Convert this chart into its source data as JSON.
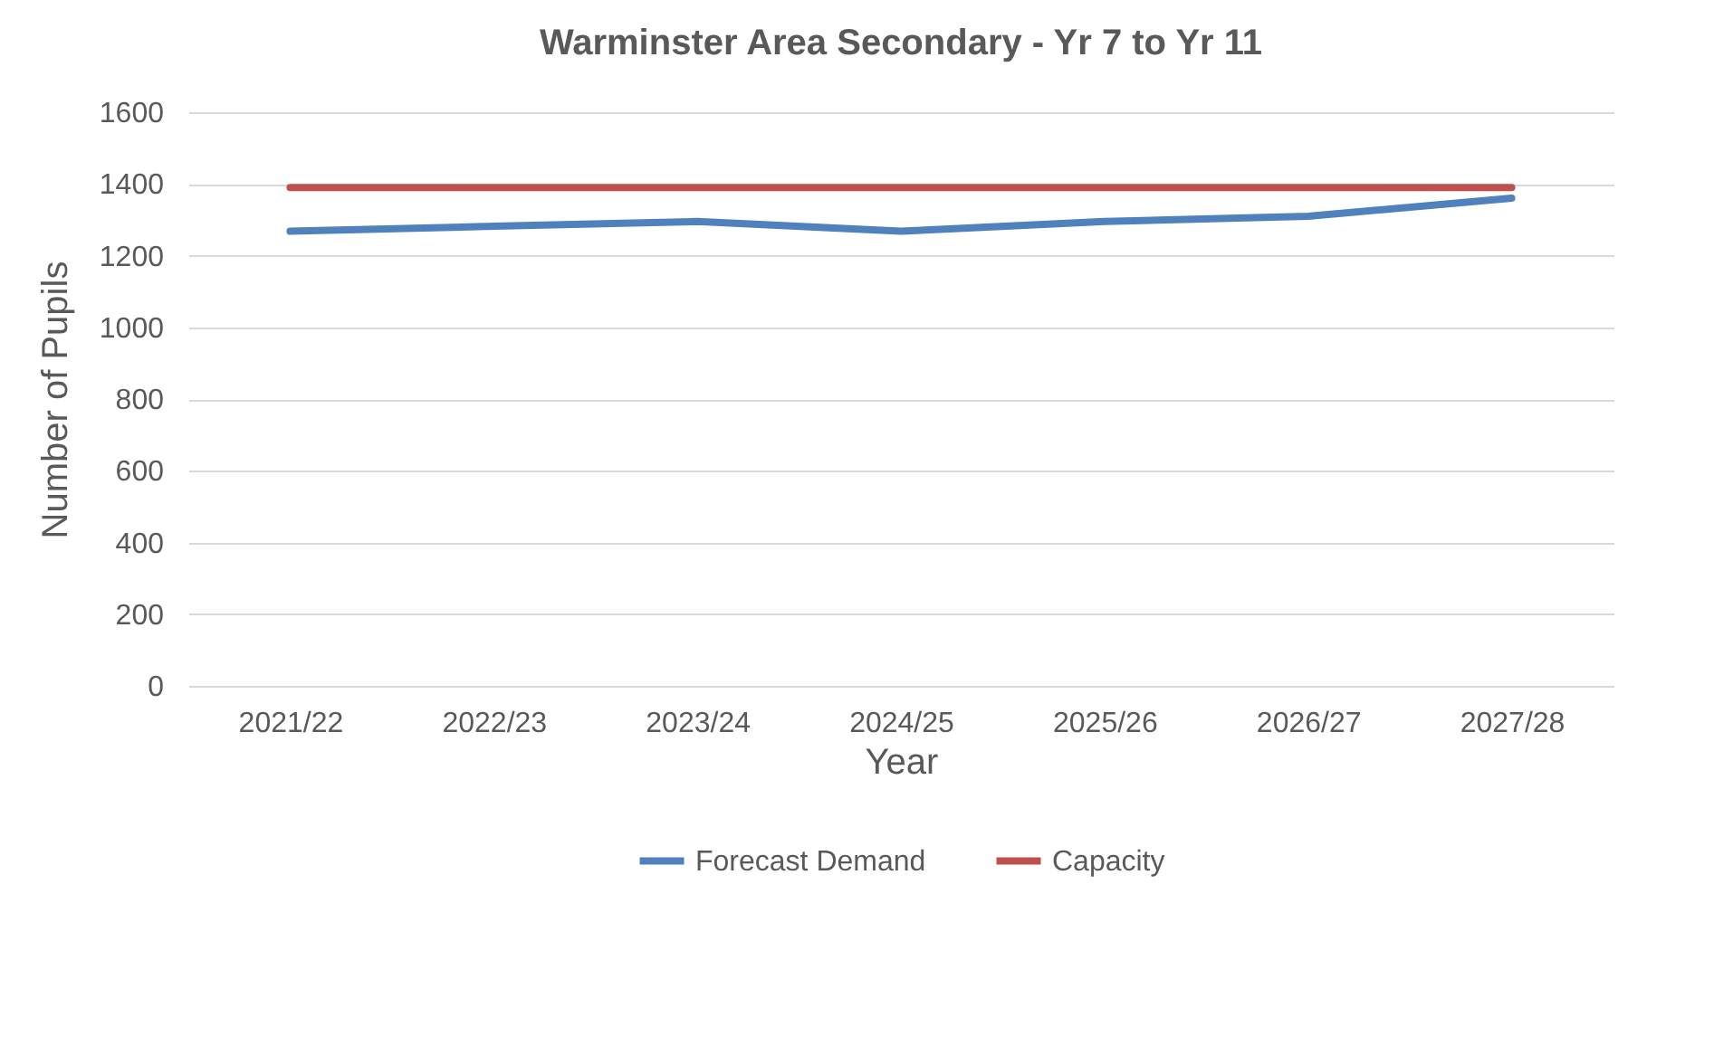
{
  "chart_data": {
    "type": "line",
    "title": "Warminster Area Secondary - Yr 7 to Yr 11",
    "xlabel": "Year",
    "ylabel": "Number of Pupils",
    "categories": [
      "2021/22",
      "2022/23",
      "2023/24",
      "2024/25",
      "2025/26",
      "2026/27",
      "2027/28"
    ],
    "series": [
      {
        "name": "Forecast Demand",
        "color": "#4f81bd",
        "values": [
          1268,
          1282,
          1295,
          1268,
          1295,
          1310,
          1360
        ]
      },
      {
        "name": "Capacity",
        "color": "#c0504d",
        "values": [
          1390,
          1390,
          1390,
          1390,
          1390,
          1390,
          1390
        ]
      }
    ],
    "ylim": [
      0,
      1600
    ],
    "yticks": [
      0,
      200,
      400,
      600,
      800,
      1000,
      1200,
      1400,
      1600
    ],
    "grid": "y",
    "legend": "bottom",
    "marker": "none",
    "line_style": "solid"
  }
}
